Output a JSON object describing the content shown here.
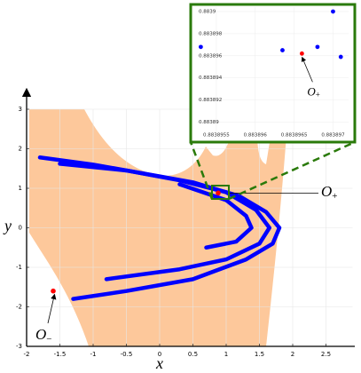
{
  "chart_data": [
    {
      "type": "line",
      "xlabel": "x",
      "ylabel": "y",
      "xlim": [
        -2,
        2.9
      ],
      "ylim": [
        -3,
        3
      ],
      "xticks": [
        -2,
        -1.5,
        -1,
        -0.5,
        0,
        0.5,
        1,
        1.5,
        2,
        2.5
      ],
      "yticks": [
        -3,
        -2,
        -1,
        0,
        1,
        2,
        3
      ],
      "grid": true,
      "series": [
        {
          "color": "#0000ff",
          "x": [
            -1.8,
            -1,
            0,
            0.5,
            1.2,
            1.6,
            1.8,
            1.7,
            1.3,
            0.5,
            -0.5,
            -1.3
          ],
          "y": [
            1.78,
            1.6,
            1.3,
            1.15,
            0.8,
            0.4,
            0,
            -0.4,
            -0.8,
            -1.3,
            -1.6,
            -1.8
          ]
        },
        {
          "color": "#0000ff",
          "x": [
            -1.5,
            -0.5,
            0.3,
            1,
            1.45,
            1.65,
            1.5,
            1,
            0.3,
            -0.8
          ],
          "y": [
            1.62,
            1.45,
            1.2,
            0.9,
            0.45,
            0,
            -0.4,
            -0.8,
            -1.05,
            -1.3
          ]
        },
        {
          "color": "#0000ff",
          "x": [
            0.3,
            1,
            1.3,
            1.38,
            1.15,
            0.7
          ],
          "y": [
            1.1,
            0.7,
            0.3,
            0,
            -0.35,
            -0.5
          ]
        }
      ],
      "annotations": [
        {
          "text": "O",
          "sub": "+",
          "x": 0.88,
          "y": 0.88,
          "color": "#ff0000"
        },
        {
          "text": "O",
          "sub": "−",
          "x": -1.6,
          "y": -1.6,
          "color": "#ff0000"
        }
      ]
    },
    {
      "type": "scatter",
      "xlim": [
        0.88389525,
        0.8838972
      ],
      "ylim": [
        0.8838886,
        0.8839004
      ],
      "xticks": [
        0.8838955,
        0.883896,
        0.8838965,
        0.883897
      ],
      "yticks": [
        0.88389,
        0.883892,
        0.883894,
        0.883896,
        0.883898,
        0.8839
      ],
      "grid": true,
      "series": [
        {
          "color": "#0000ff",
          "x": [
            0.8838953,
            0.88389635,
            0.8838968,
            0.883897,
            0.8838971
          ],
          "y": [
            0.8838968,
            0.8838965,
            0.8838968,
            0.8839,
            0.8838959
          ]
        },
        {
          "color": "#ff0000",
          "x": [
            0.8838966
          ],
          "y": [
            0.8838962
          ]
        }
      ]
    }
  ]
}
